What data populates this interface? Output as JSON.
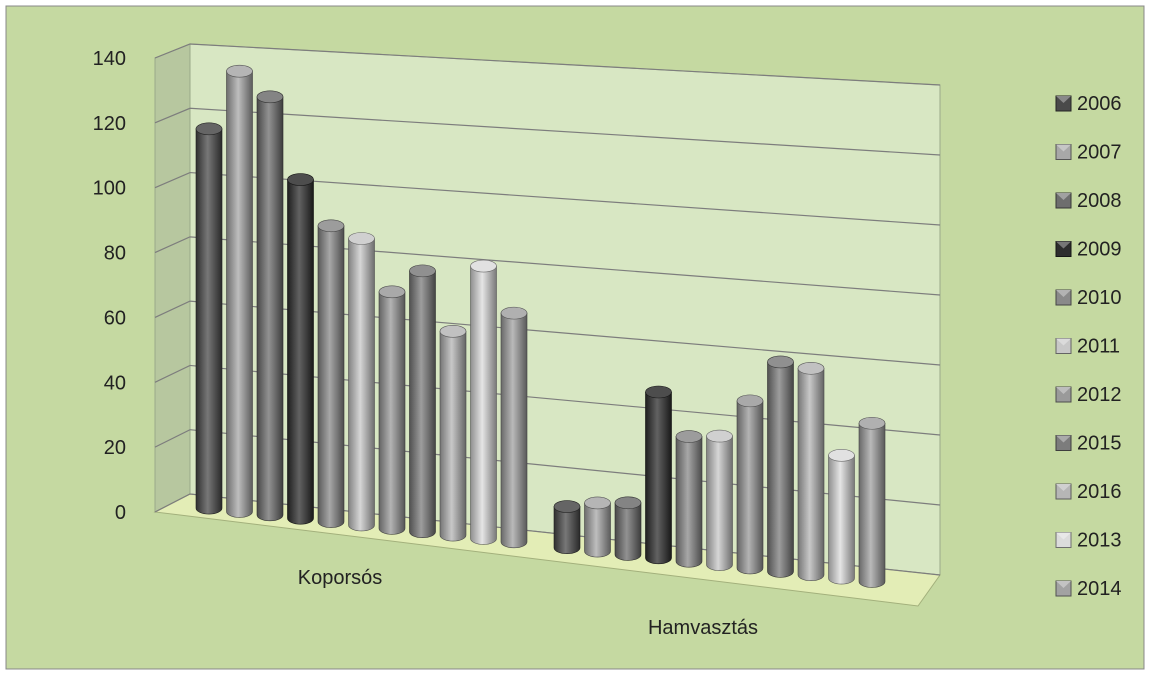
{
  "chart_data": {
    "type": "bar",
    "title": "",
    "xlabel": "",
    "ylabel": "",
    "ylim": [
      0,
      140
    ],
    "y_ticks": [
      "0",
      "20",
      "40",
      "60",
      "80",
      "100",
      "120",
      "140"
    ],
    "grid": true,
    "legend_position": "right",
    "style": "3d-cylinder",
    "categories": [
      "Koporsós",
      "Hamvasztás"
    ],
    "series": [
      {
        "name": "2006",
        "color": "#4a4a4a",
        "values": [
          114,
          12
        ]
      },
      {
        "name": "2007",
        "color": "#a8a8a8",
        "values": [
          132,
          14
        ]
      },
      {
        "name": "2008",
        "color": "#6e6e6e",
        "values": [
          125,
          15
        ]
      },
      {
        "name": "2009",
        "color": "#2e2e2e",
        "values": [
          101,
          48
        ]
      },
      {
        "name": "2010",
        "color": "#8a8a8a",
        "values": [
          88,
          36
        ]
      },
      {
        "name": "2011",
        "color": "#c8c8c8",
        "values": [
          85,
          37
        ]
      },
      {
        "name": "2012",
        "color": "#9a9a9a",
        "values": [
          70,
          48
        ]
      },
      {
        "name": "2015",
        "color": "#7c7c7c",
        "values": [
          77,
          60
        ]
      },
      {
        "name": "2016",
        "color": "#b6b6b6",
        "values": [
          60,
          59
        ]
      },
      {
        "name": "2013",
        "color": "#dcdcdc",
        "values": [
          80,
          35
        ]
      },
      {
        "name": "2014",
        "color": "#a2a2a2",
        "values": [
          67,
          45
        ]
      }
    ]
  },
  "colors": {
    "background": "#c5d9a1",
    "plot_wall": "#d8e7c3",
    "floor": "#e3edb6",
    "border": "#888888"
  }
}
